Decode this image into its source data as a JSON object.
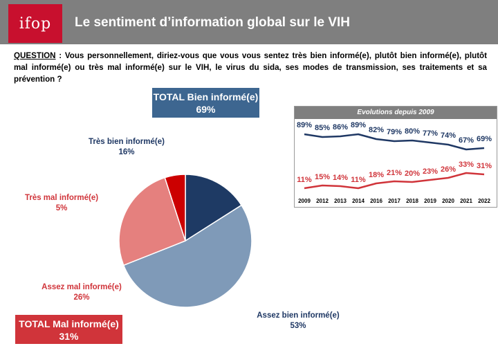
{
  "header": {
    "logo_text": "ifop",
    "title": "Le sentiment d’information global sur le VIH"
  },
  "question": {
    "label": "QUESTION",
    "text": " : Vous personnellement, diriez-vous que vous vous sentez très bien informé(e), plutôt bien informé(e), plutôt mal informé(e) ou très mal informé(e) sur le VIH, le virus du sida, ses modes de transmission, ses traitements et sa prévention ?"
  },
  "totals": {
    "bien": {
      "label": "TOTAL Bien informé(e)",
      "value": "69%"
    },
    "mal": {
      "label": "TOTAL Mal informé(e)",
      "value": "31%"
    }
  },
  "colors": {
    "dark_blue": "#1e3a64",
    "light_blue": "#7f9ab8",
    "salmon": "#e5807e",
    "red": "#cc0000",
    "label_blue": "#1f3864",
    "label_red": "#d0343a"
  },
  "chart_data": [
    {
      "type": "pie",
      "slices": [
        {
          "name": "Très bien informé(e)",
          "value": 16,
          "label": "16%"
        },
        {
          "name": "Assez bien informé(e)",
          "value": 53,
          "label": "53%"
        },
        {
          "name": "Assez mal informé(e)",
          "value": 26,
          "label": "26%"
        },
        {
          "name": "Très mal informé(e)",
          "value": 5,
          "label": "5%"
        }
      ]
    },
    {
      "type": "line",
      "title": "Evolutions depuis 2009",
      "x": [
        "2009",
        "2012",
        "2013",
        "2014",
        "2016",
        "2017",
        "2018",
        "2019",
        "2020",
        "2021",
        "2022"
      ],
      "series": [
        {
          "values": [
            89,
            85,
            86,
            89,
            82,
            79,
            80,
            77,
            74,
            67,
            69
          ],
          "labels": [
            "89%",
            "85%",
            "86%",
            "89%",
            "82%",
            "79%",
            "80%",
            "77%",
            "74%",
            "67%",
            "69%"
          ]
        },
        {
          "values": [
            11,
            15,
            14,
            11,
            18,
            21,
            20,
            23,
            26,
            33,
            31
          ],
          "labels": [
            "11%",
            "15%",
            "14%",
            "11%",
            "18%",
            "21%",
            "20%",
            "23%",
            "26%",
            "33%",
            "31%"
          ]
        }
      ]
    }
  ]
}
